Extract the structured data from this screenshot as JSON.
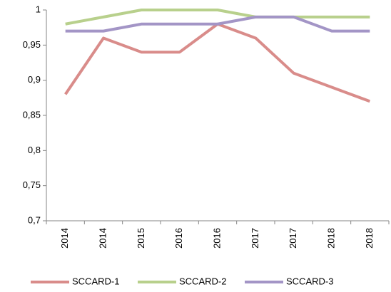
{
  "chart_data": {
    "type": "line",
    "categories": [
      "2014",
      "2014",
      "2015",
      "2016",
      "2016",
      "2017",
      "2017",
      "2018",
      "2018"
    ],
    "series": [
      {
        "name": "SCCARD-1",
        "color": "#d98c8a",
        "values": [
          0.88,
          0.96,
          0.94,
          0.94,
          0.98,
          0.96,
          0.91,
          0.89,
          0.87
        ]
      },
      {
        "name": "SCCARD-2",
        "color": "#b8d08c",
        "values": [
          0.98,
          0.99,
          1,
          1,
          1,
          0.99,
          0.99,
          0.99,
          0.99
        ]
      },
      {
        "name": "SCCARD-3",
        "color": "#a395c6",
        "values": [
          0.97,
          0.97,
          0.98,
          0.98,
          0.98,
          0.99,
          0.99,
          0.97,
          0.97
        ]
      }
    ],
    "ylim": [
      0.7,
      1
    ],
    "yticks": [
      {
        "value": 0.7,
        "label": "0,7"
      },
      {
        "value": 0.75,
        "label": "0,75"
      },
      {
        "value": 0.8,
        "label": "0,8"
      },
      {
        "value": 0.85,
        "label": "0,85"
      },
      {
        "value": 0.9,
        "label": "0,9"
      },
      {
        "value": 0.95,
        "label": "0,95"
      },
      1
    ],
    "grid": false,
    "legend": "bottom"
  }
}
